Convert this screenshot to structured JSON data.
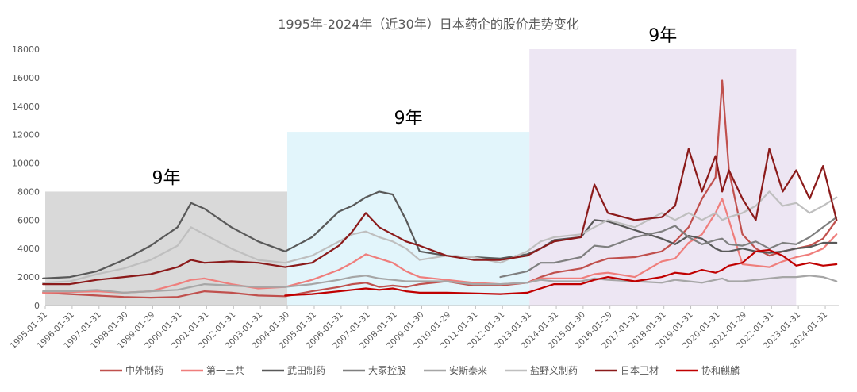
{
  "chart_data": {
    "type": "line",
    "title": "1995年-2024年（近30年）日本药企的股价走势变化",
    "xlabel": "",
    "ylabel": "",
    "ylim": [
      0,
      18000
    ],
    "yticks": [
      0,
      2000,
      4000,
      6000,
      8000,
      10000,
      12000,
      14000,
      16000,
      18000
    ],
    "xlim": [
      "1995-01-31",
      "2024-07-31"
    ],
    "xtick_labels": [
      "1995-01-31",
      "1996-01-31",
      "1997-01-31",
      "1998-01-30",
      "1999-01-29",
      "2000-01-31",
      "2001-01-31",
      "2002-01-31",
      "2003-01-31",
      "2004-01-30",
      "2005-01-31",
      "2006-01-31",
      "2007-01-31",
      "2008-01-31",
      "2009-01-30",
      "2010-01-29",
      "2011-01-31",
      "2012-01-31",
      "2013-01-31",
      "2014-01-31",
      "2015-01-30",
      "2016-01-29",
      "2017-01-31",
      "2018-01-31",
      "2019-01-31",
      "2020-01-31",
      "2021-01-29",
      "2022-01-31",
      "2023-01-31",
      "2024-01-31"
    ],
    "grid": false,
    "legend_position": "bottom",
    "periods": [
      {
        "label": "9年",
        "start": "1995-01-31",
        "end": "2004-01-30",
        "top": 8000,
        "color": "#d9d9d9"
      },
      {
        "label": "9年",
        "start": "2004-01-30",
        "end": "2013-01-31",
        "top": 12200,
        "color": "#e2f5fb"
      },
      {
        "label": "9年",
        "start": "2013-01-31",
        "end": "2022-12-31",
        "top": 18000,
        "color": "#ede6f3"
      }
    ],
    "x": [
      "1995-01",
      "1996-01",
      "1997-01",
      "1998-01",
      "1999-01",
      "2000-01",
      "2000-07",
      "2001-01",
      "2002-01",
      "2003-01",
      "2004-01",
      "2005-01",
      "2006-01",
      "2006-07",
      "2007-01",
      "2007-07",
      "2008-01",
      "2008-07",
      "2009-01",
      "2010-01",
      "2011-01",
      "2012-01",
      "2013-01",
      "2013-07",
      "2014-01",
      "2015-01",
      "2015-07",
      "2016-01",
      "2017-01",
      "2018-01",
      "2018-07",
      "2019-01",
      "2019-07",
      "2020-01",
      "2020-04",
      "2020-07",
      "2021-01",
      "2021-07",
      "2022-01",
      "2022-07",
      "2023-01",
      "2023-07",
      "2024-01",
      "2024-07"
    ],
    "series": [
      {
        "name": "中外制药",
        "color": "#c0504d",
        "values": [
          900,
          800,
          700,
          600,
          550,
          600,
          800,
          1000,
          900,
          700,
          650,
          1000,
          1300,
          1500,
          1600,
          1300,
          1400,
          1300,
          1500,
          1700,
          1400,
          1400,
          1600,
          2000,
          2300,
          2600,
          3000,
          3300,
          3400,
          3800,
          4500,
          5500,
          7500,
          9000,
          15800,
          9500,
          5000,
          4000,
          3500,
          3800,
          4000,
          4200,
          4700,
          6000
        ]
      },
      {
        "name": "第一三共",
        "color": "#ef7e7c",
        "values": [
          900,
          950,
          1000,
          900,
          1000,
          1500,
          1800,
          1900,
          1500,
          1200,
          1300,
          1800,
          2500,
          3000,
          3600,
          3300,
          3000,
          2400,
          2000,
          1800,
          1600,
          1500,
          1600,
          1900,
          1900,
          1900,
          2200,
          2300,
          2000,
          3100,
          3300,
          4400,
          5000,
          6500,
          7500,
          6000,
          2900,
          2800,
          2700,
          3100,
          3400,
          3600,
          4000,
          5000
        ]
      },
      {
        "name": "武田制药",
        "color": "#595959",
        "values": [
          1900,
          2000,
          2400,
          3200,
          4200,
          5500,
          7200,
          6800,
          5500,
          4500,
          3800,
          4800,
          6600,
          7000,
          7600,
          8000,
          7800,
          6000,
          3800,
          3500,
          3400,
          3300,
          3600,
          4000,
          4600,
          4800,
          6000,
          5900,
          5300,
          4700,
          4300,
          4900,
          4700,
          4000,
          3800,
          3800,
          4000,
          3800,
          3700,
          3800,
          4000,
          4100,
          4400,
          4400
        ]
      },
      {
        "name": "大冢控股",
        "color": "#7f7f7f",
        "values": [
          null,
          null,
          null,
          null,
          null,
          null,
          null,
          null,
          null,
          null,
          null,
          null,
          null,
          null,
          null,
          null,
          null,
          null,
          null,
          null,
          null,
          2000,
          2400,
          3000,
          3000,
          3400,
          4200,
          4100,
          4800,
          5200,
          5600,
          4800,
          4300,
          4600,
          4700,
          4300,
          4200,
          4500,
          4000,
          4400,
          4300,
          4800,
          5500,
          6200
        ]
      },
      {
        "name": "安斯泰来",
        "color": "#a6a6a6",
        "values": [
          1000,
          1000,
          1100,
          900,
          1000,
          1100,
          1300,
          1500,
          1400,
          1300,
          1300,
          1500,
          1800,
          2000,
          2100,
          1900,
          1800,
          1700,
          1700,
          1700,
          1500,
          1500,
          1600,
          1800,
          1700,
          1700,
          1900,
          1800,
          1700,
          1600,
          1800,
          1700,
          1600,
          1800,
          1900,
          1700,
          1700,
          1800,
          1900,
          2000,
          2000,
          2100,
          2000,
          1700
        ]
      },
      {
        "name": "盐野义制药",
        "color": "#bfbfbf",
        "values": [
          1600,
          1700,
          2200,
          2600,
          3200,
          4200,
          5500,
          5000,
          4000,
          3200,
          3000,
          3500,
          4500,
          5000,
          5200,
          4800,
          4500,
          4000,
          3200,
          3500,
          3400,
          3000,
          3800,
          4500,
          4800,
          5000,
          5500,
          6000,
          5500,
          6500,
          6000,
          6500,
          6000,
          6500,
          6000,
          6200,
          6500,
          7000,
          8000,
          7000,
          7200,
          6500,
          7000,
          7600
        ]
      },
      {
        "name": "日本卫材",
        "color": "#8b1a1a",
        "values": [
          1500,
          1500,
          1800,
          2000,
          2200,
          2700,
          3200,
          3000,
          3100,
          3000,
          2700,
          3000,
          4200,
          5200,
          6500,
          5500,
          5000,
          4500,
          4200,
          3500,
          3200,
          3200,
          3500,
          4000,
          4500,
          4800,
          8500,
          6500,
          6000,
          6200,
          7000,
          11000,
          8000,
          10500,
          8000,
          9500,
          7500,
          6000,
          11000,
          8000,
          9500,
          7500,
          9800,
          6000
        ]
      },
      {
        "name": "协和麒麟",
        "color": "#c00000",
        "values": [
          null,
          null,
          null,
          null,
          null,
          null,
          null,
          null,
          null,
          null,
          700,
          800,
          1000,
          1100,
          1200,
          1100,
          1200,
          1000,
          900,
          900,
          850,
          800,
          900,
          1200,
          1500,
          1500,
          1800,
          2000,
          1700,
          2000,
          2300,
          2200,
          2500,
          2300,
          2500,
          2800,
          3000,
          3800,
          3900,
          3500,
          2800,
          3000,
          2800,
          2900
        ]
      }
    ]
  }
}
